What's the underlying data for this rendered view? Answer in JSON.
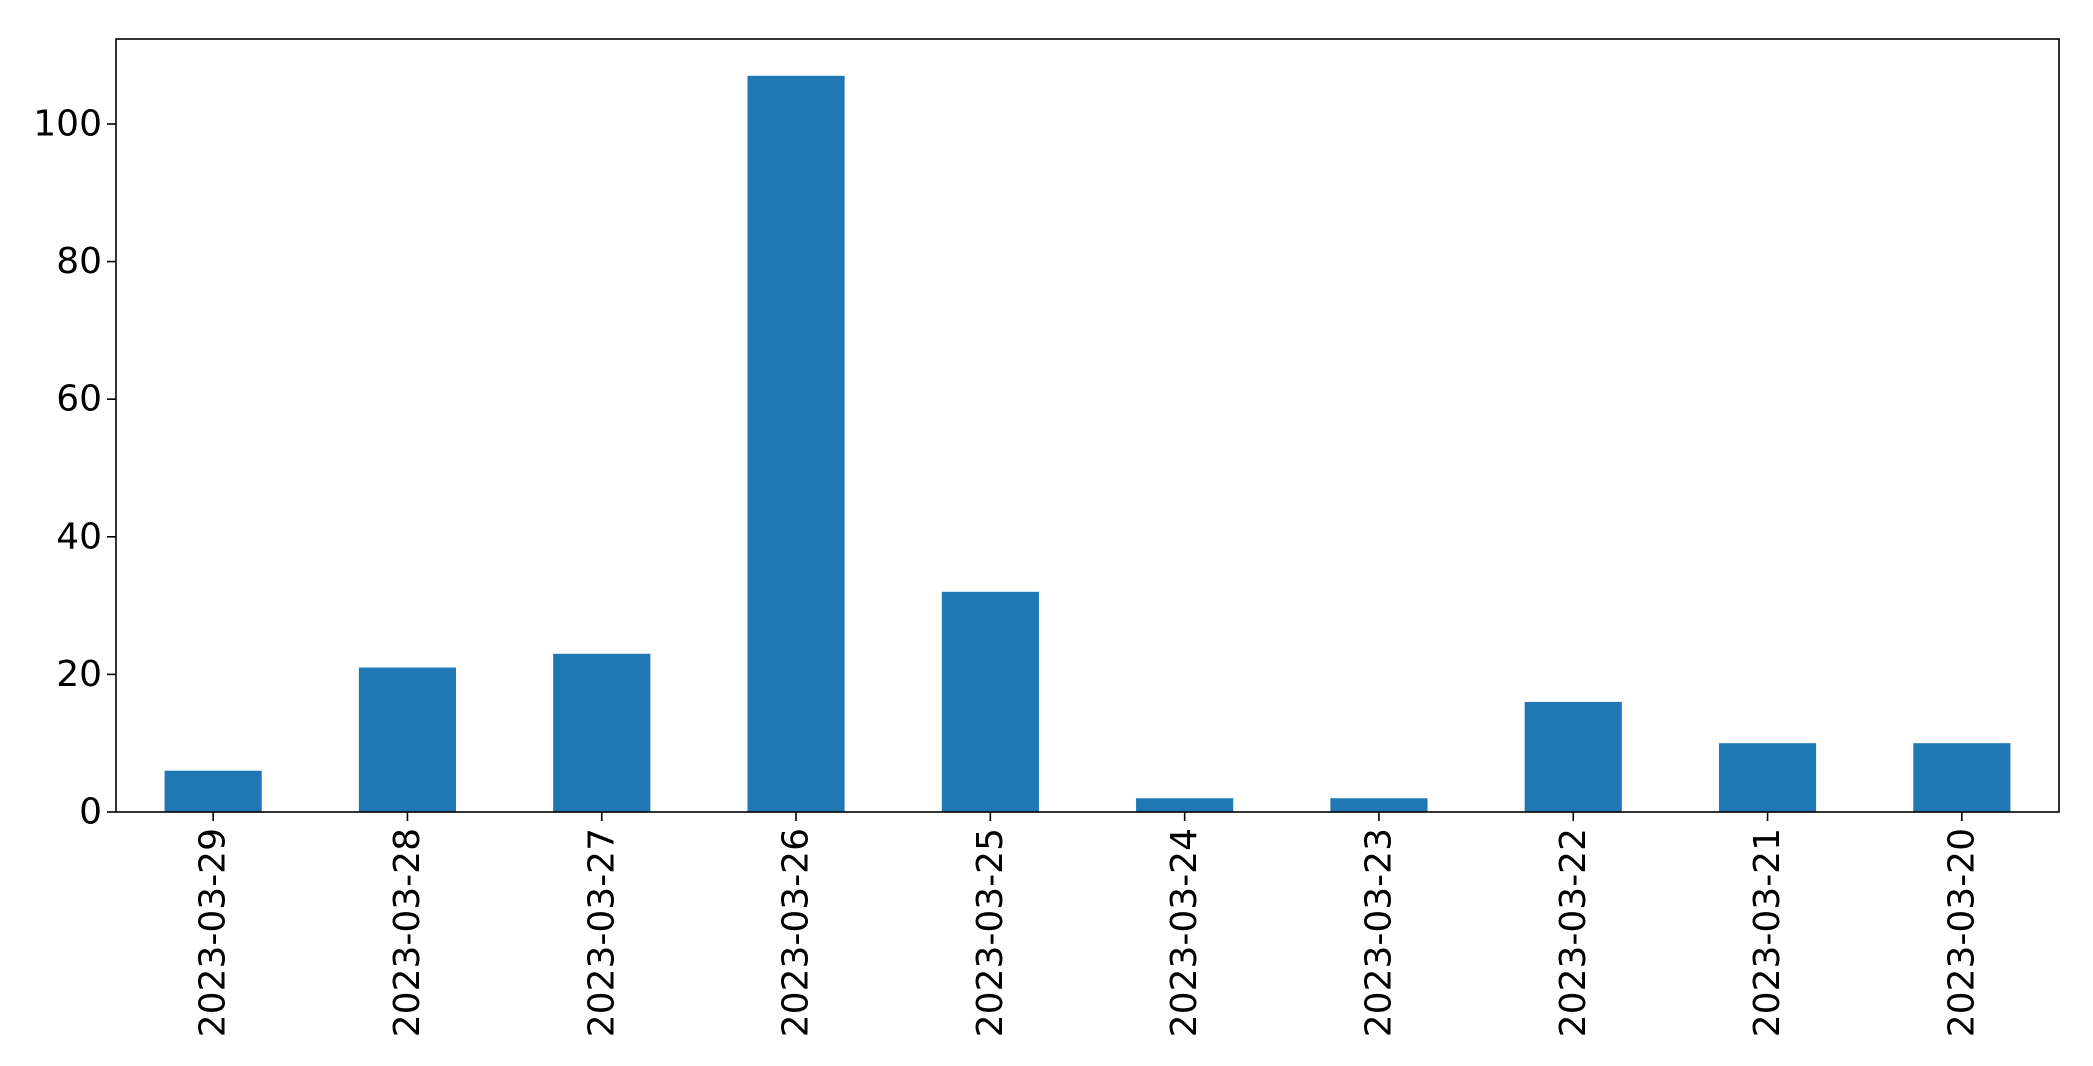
{
  "chart_data": {
    "type": "bar",
    "title": "",
    "xlabel": "",
    "ylabel": "",
    "categories": [
      "2023-03-29",
      "2023-03-28",
      "2023-03-27",
      "2023-03-26",
      "2023-03-25",
      "2023-03-24",
      "2023-03-23",
      "2023-03-22",
      "2023-03-21",
      "2023-03-20"
    ],
    "values": [
      6,
      21,
      23,
      107,
      32,
      2,
      2,
      16,
      10,
      10
    ],
    "ylim": [
      0,
      112.35
    ],
    "yticks": [
      0,
      20,
      40,
      60,
      80,
      100
    ],
    "bar_color": "#1f77b4",
    "grid": false,
    "legend": "none"
  }
}
